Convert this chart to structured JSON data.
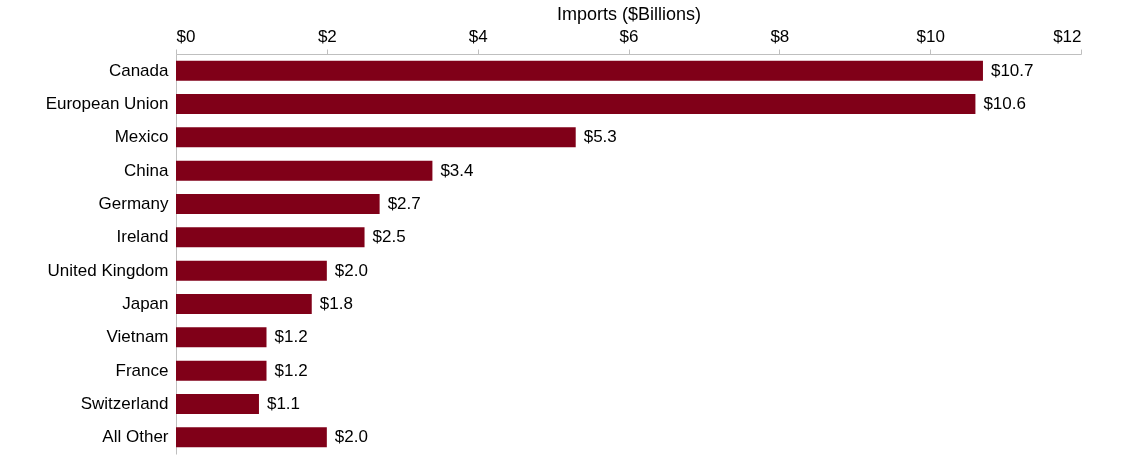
{
  "chart_data": {
    "type": "bar",
    "orientation": "horizontal",
    "xlabel": "Imports ($Billions)",
    "categories": [
      "Canada",
      "European Union",
      "Mexico",
      "China",
      "Germany",
      "Ireland",
      "United Kingdom",
      "Japan",
      "Vietnam",
      "France",
      "Switzerland",
      "All Other"
    ],
    "values": [
      10.7,
      10.6,
      5.3,
      3.4,
      2.7,
      2.5,
      2.0,
      1.8,
      1.2,
      1.2,
      1.1,
      2.0
    ],
    "value_labels": [
      "$10.7",
      "$10.6",
      "$5.3",
      "$3.4",
      "$2.7",
      "$2.5",
      "$2.0",
      "$1.8",
      "$1.2",
      "$1.2",
      "$1.1",
      "$2.0"
    ],
    "color": "#800018",
    "xlim": [
      0,
      12
    ],
    "xticks": [
      {
        "value": 0,
        "label": "$0"
      },
      {
        "value": 2,
        "label": "$2"
      },
      {
        "value": 4,
        "label": "$4"
      },
      {
        "value": 6,
        "label": "$6"
      },
      {
        "value": 8,
        "label": "$8"
      },
      {
        "value": 10,
        "label": "$10"
      },
      {
        "value": 12,
        "label": "$12"
      }
    ],
    "grid": false
  }
}
